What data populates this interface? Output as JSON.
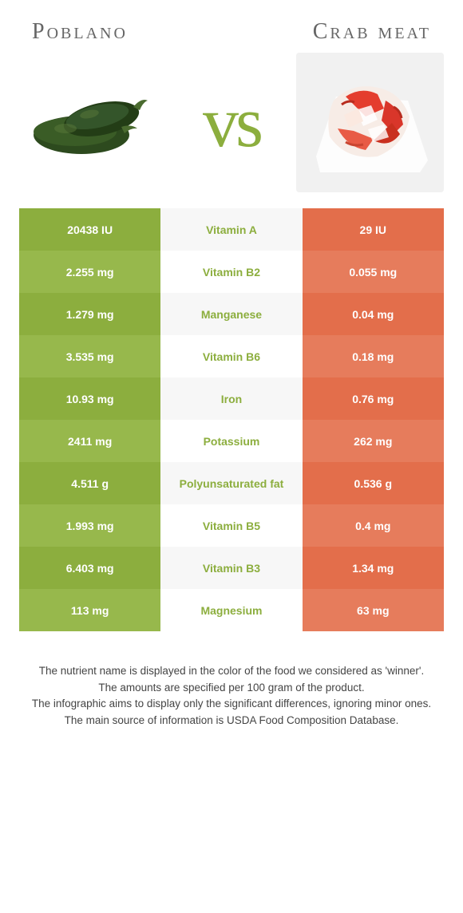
{
  "colors": {
    "left_primary": "#8cae3e",
    "left_alt": "#97b84c",
    "right_primary": "#e36e4b",
    "right_alt": "#e67c5c",
    "mid_primary": "#f7f7f7",
    "mid_alt": "#ffffff",
    "nutrient_left_win": "#8cae3e",
    "nutrient_right_win": "#e36e4b",
    "title_text": "#666666",
    "vs_text": "#8cae3e",
    "notes_text": "#444444"
  },
  "typography": {
    "title_fontsize": 28,
    "vs_fontsize": 90,
    "cell_fontsize": 14,
    "notes_fontsize": 13.5
  },
  "header": {
    "left_title": "Poblano",
    "right_title": "Crab meat",
    "vs_label": "vs"
  },
  "table": {
    "rows": [
      {
        "left": "20438 IU",
        "nutrient": "Vitamin A",
        "right": "29 IU",
        "winner": "left"
      },
      {
        "left": "2.255 mg",
        "nutrient": "Vitamin B2",
        "right": "0.055 mg",
        "winner": "left"
      },
      {
        "left": "1.279 mg",
        "nutrient": "Manganese",
        "right": "0.04 mg",
        "winner": "left"
      },
      {
        "left": "3.535 mg",
        "nutrient": "Vitamin B6",
        "right": "0.18 mg",
        "winner": "left"
      },
      {
        "left": "10.93 mg",
        "nutrient": "Iron",
        "right": "0.76 mg",
        "winner": "left"
      },
      {
        "left": "2411 mg",
        "nutrient": "Potassium",
        "right": "262 mg",
        "winner": "left"
      },
      {
        "left": "4.511 g",
        "nutrient": "Polyunsaturated fat",
        "right": "0.536 g",
        "winner": "left"
      },
      {
        "left": "1.993 mg",
        "nutrient": "Vitamin B5",
        "right": "0.4 mg",
        "winner": "left"
      },
      {
        "left": "6.403 mg",
        "nutrient": "Vitamin B3",
        "right": "1.34 mg",
        "winner": "left"
      },
      {
        "left": "113 mg",
        "nutrient": "Magnesium",
        "right": "63 mg",
        "winner": "left"
      }
    ]
  },
  "notes": {
    "line1": "The nutrient name is displayed in the color of the food we considered as 'winner'.",
    "line2": "The amounts are specified per 100 gram of the product.",
    "line3": "The infographic aims to display only the significant differences, ignoring minor ones.",
    "line4": "The main source of information is USDA Food Composition Database."
  }
}
